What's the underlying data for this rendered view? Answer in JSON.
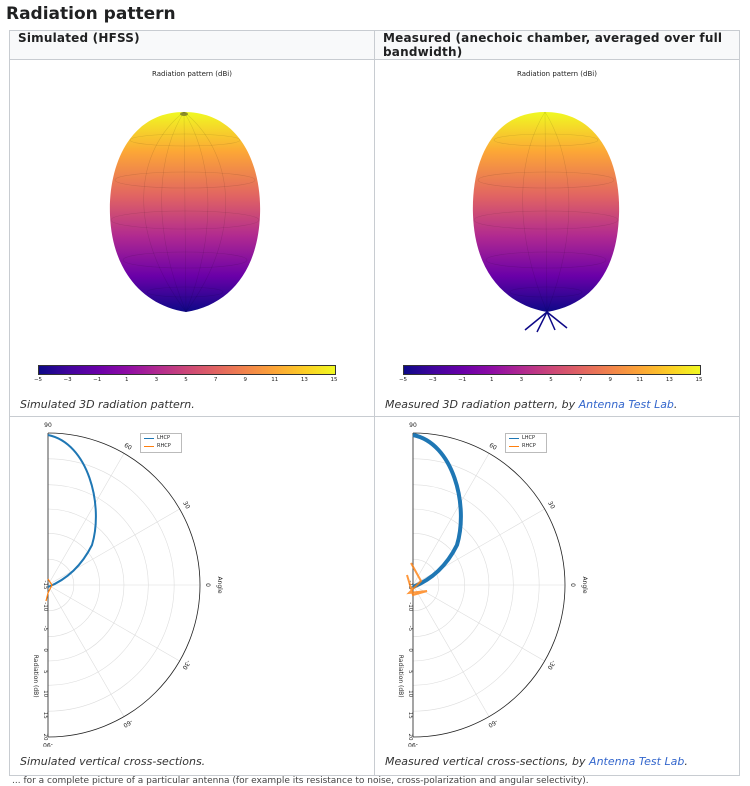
{
  "page": {
    "heading": "Radiation pattern"
  },
  "table": {
    "col_simulated": "Simulated (HFSS)",
    "col_measured": "Measured (anechoic chamber, averaged over full bandwidth)"
  },
  "sim3d": {
    "plot_title": "Radiation pattern (dBi)",
    "caption": "Simulated 3D radiation pattern."
  },
  "meas3d": {
    "plot_title": "Radiation pattern (dBi)",
    "caption_prefix": "Measured 3D radiation pattern, by ",
    "caption_link": "Antenna Test Lab",
    "caption_suffix": "."
  },
  "colorbar": {
    "ticks": [
      "−5",
      "−3",
      "−1",
      "1",
      "3",
      "5",
      "7",
      "9",
      "11",
      "13",
      "15"
    ],
    "colormap": "plasma"
  },
  "simpolar": {
    "caption": "Simulated vertical cross-sections."
  },
  "measpolar": {
    "caption_prefix": "Measured vertical cross-sections, by ",
    "caption_link": "Antenna Test Lab",
    "caption_suffix": "."
  },
  "polar": {
    "angle_label": "Angle",
    "radius_label": "Radiation (dB)",
    "angle_ticks": [
      "90",
      "60",
      "30",
      "0",
      "-30",
      "-60",
      "-90"
    ],
    "radius_ticks": [
      "-15",
      "-10",
      "-5",
      "0",
      "5",
      "10",
      "15",
      "20"
    ],
    "legend": [
      {
        "name": "LHCP",
        "color": "#1f77b4"
      },
      {
        "name": "RHCP",
        "color": "#ff7f0e"
      }
    ]
  },
  "footer": {
    "text": "... for a complete picture of a particular antenna (for example its resistance to noise, cross-polarization and angular selectivity)."
  }
}
